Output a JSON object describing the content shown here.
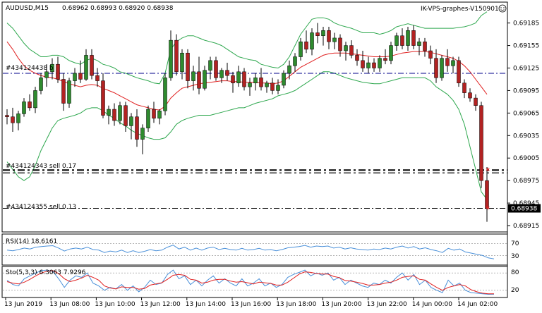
{
  "header": {
    "symbol": "AUDUSD,M15",
    "ohlc": "0.68962 0.68993 0.68920 0.68938",
    "watermark": "IK-VPS-graphes-V150901"
  },
  "colors": {
    "bull": "#2e8b2e",
    "bear": "#b22222",
    "bands": "#2fa84f",
    "ma": "#e02020",
    "level": "#00008b",
    "rsi": "#4a90d9",
    "sto_main": "#4a90d9",
    "sto_signal": "#e02020"
  },
  "chart_data": [
    {
      "type": "candlestick",
      "name": "AUDUSD,M15",
      "price_axis": {
        "ylim": [
          0.68915,
          0.69195
        ],
        "ticks": [
          "0.69185",
          "0.69155",
          "0.69125",
          "0.69095",
          "0.69065",
          "0.69035",
          "0.69005",
          "0.68975",
          "0.68945",
          "0.68915"
        ]
      },
      "current_price": "0.68938",
      "x_ticks": [
        "13 Jun 2019",
        "13 Jun 08:00",
        "13 Jun 10:00",
        "13 Jun 12:00",
        "13 Jun 14:00",
        "13 Jun 16:00",
        "13 Jun 18:00",
        "13 Jun 20:00",
        "13 Jun 22:00",
        "14 Jun 00:00",
        "14 Jun 02:00"
      ],
      "candles": [
        [
          0.69062,
          0.6907,
          0.6905,
          0.6906
        ],
        [
          0.6906,
          0.69072,
          0.6904,
          0.69052
        ],
        [
          0.69052,
          0.69068,
          0.69042,
          0.69064
        ],
        [
          0.69064,
          0.69085,
          0.6906,
          0.6908
        ],
        [
          0.6908,
          0.6909,
          0.69068,
          0.69072
        ],
        [
          0.69072,
          0.691,
          0.69065,
          0.69095
        ],
        [
          0.69095,
          0.69118,
          0.6909,
          0.69112
        ],
        [
          0.69112,
          0.6913,
          0.691,
          0.6912
        ],
        [
          0.6912,
          0.69138,
          0.6911,
          0.6913
        ],
        [
          0.6913,
          0.6914,
          0.69105,
          0.6911
        ],
        [
          0.6911,
          0.69118,
          0.69068,
          0.69078
        ],
        [
          0.69078,
          0.69112,
          0.69072,
          0.69108
        ],
        [
          0.69108,
          0.69125,
          0.691,
          0.69118
        ],
        [
          0.69118,
          0.69135,
          0.69105,
          0.6911
        ],
        [
          0.6911,
          0.6915,
          0.69108,
          0.69142
        ],
        [
          0.69142,
          0.6915,
          0.6911,
          0.69115
        ],
        [
          0.69115,
          0.69125,
          0.691,
          0.69108
        ],
        [
          0.69108,
          0.69118,
          0.69058,
          0.69062
        ],
        [
          0.69062,
          0.69075,
          0.6905,
          0.6907
        ],
        [
          0.6907,
          0.69078,
          0.69048,
          0.69055
        ],
        [
          0.69055,
          0.6908,
          0.6905,
          0.69075
        ],
        [
          0.69075,
          0.6908,
          0.6904,
          0.69048
        ],
        [
          0.69048,
          0.69065,
          0.6903,
          0.6906
        ],
        [
          0.6906,
          0.6907,
          0.6902,
          0.6903
        ],
        [
          0.6903,
          0.6905,
          0.6901,
          0.69045
        ],
        [
          0.69045,
          0.69075,
          0.6904,
          0.6907
        ],
        [
          0.6907,
          0.6908,
          0.69052,
          0.69058
        ],
        [
          0.69058,
          0.6907,
          0.6905,
          0.69068
        ],
        [
          0.69068,
          0.69118,
          0.69062,
          0.69112
        ],
        [
          0.69112,
          0.69175,
          0.69108,
          0.69162
        ],
        [
          0.69162,
          0.6917,
          0.69115,
          0.6912
        ],
        [
          0.6912,
          0.6915,
          0.6911,
          0.69145
        ],
        [
          0.69145,
          0.6915,
          0.69098,
          0.69108
        ],
        [
          0.69108,
          0.69128,
          0.69095,
          0.6912
        ],
        [
          0.6912,
          0.6914,
          0.6909,
          0.69098
        ],
        [
          0.69098,
          0.69128,
          0.69095,
          0.69122
        ],
        [
          0.69122,
          0.6914,
          0.6911,
          0.69135
        ],
        [
          0.69135,
          0.6914,
          0.69108,
          0.69112
        ],
        [
          0.69112,
          0.69125,
          0.69105,
          0.69122
        ],
        [
          0.69122,
          0.69132,
          0.69108,
          0.69115
        ],
        [
          0.69115,
          0.6912,
          0.69092,
          0.69105
        ],
        [
          0.69105,
          0.69128,
          0.691,
          0.6912
        ],
        [
          0.6912,
          0.69125,
          0.69095,
          0.691
        ],
        [
          0.691,
          0.69112,
          0.69088,
          0.69105
        ],
        [
          0.69105,
          0.69118,
          0.69095,
          0.69112
        ],
        [
          0.69112,
          0.69125,
          0.69095,
          0.691
        ],
        [
          0.691,
          0.69108,
          0.69092,
          0.69105
        ],
        [
          0.69105,
          0.69112,
          0.6909,
          0.69095
        ],
        [
          0.69095,
          0.6911,
          0.6909,
          0.69102
        ],
        [
          0.69102,
          0.69122,
          0.69098,
          0.69118
        ],
        [
          0.69118,
          0.69135,
          0.6911,
          0.69128
        ],
        [
          0.69128,
          0.69145,
          0.6912,
          0.6914
        ],
        [
          0.6914,
          0.69165,
          0.69135,
          0.6916
        ],
        [
          0.6916,
          0.69175,
          0.69145,
          0.6915
        ],
        [
          0.6915,
          0.69178,
          0.69142,
          0.69172
        ],
        [
          0.69172,
          0.69185,
          0.69158,
          0.69168
        ],
        [
          0.69168,
          0.6918,
          0.69155,
          0.69175
        ],
        [
          0.69175,
          0.6918,
          0.6915,
          0.6916
        ],
        [
          0.6916,
          0.69172,
          0.6915,
          0.69165
        ],
        [
          0.69165,
          0.6917,
          0.6914,
          0.69148
        ],
        [
          0.69148,
          0.6916,
          0.69135,
          0.69155
        ],
        [
          0.69155,
          0.69162,
          0.69138,
          0.69142
        ],
        [
          0.69142,
          0.6915,
          0.69128,
          0.69135
        ],
        [
          0.69135,
          0.69148,
          0.6912,
          0.69125
        ],
        [
          0.69125,
          0.6914,
          0.69118,
          0.69132
        ],
        [
          0.69132,
          0.69138,
          0.6912,
          0.69125
        ],
        [
          0.69125,
          0.69142,
          0.6912,
          0.69138
        ],
        [
          0.69138,
          0.6915,
          0.6913,
          0.69135
        ],
        [
          0.69135,
          0.6916,
          0.6913,
          0.69155
        ],
        [
          0.69155,
          0.69172,
          0.69148,
          0.69168
        ],
        [
          0.69168,
          0.69178,
          0.6915,
          0.69155
        ],
        [
          0.69155,
          0.6918,
          0.69148,
          0.69175
        ],
        [
          0.69175,
          0.69182,
          0.6915,
          0.69155
        ],
        [
          0.69155,
          0.69165,
          0.69142,
          0.6916
        ],
        [
          0.6916,
          0.69165,
          0.6914,
          0.69148
        ],
        [
          0.69148,
          0.69155,
          0.6913,
          0.69138
        ],
        [
          0.69138,
          0.6915,
          0.69105,
          0.69112
        ],
        [
          0.69112,
          0.69142,
          0.69108,
          0.69138
        ],
        [
          0.69138,
          0.6915,
          0.6912,
          0.69128
        ],
        [
          0.69128,
          0.6914,
          0.69118,
          0.69135
        ],
        [
          0.69135,
          0.6914,
          0.691,
          0.69105
        ],
        [
          0.69105,
          0.6911,
          0.69085,
          0.69092
        ],
        [
          0.69092,
          0.69098,
          0.6908,
          0.69085
        ],
        [
          0.69085,
          0.6909,
          0.69068,
          0.69075
        ],
        [
          0.69075,
          0.6908,
          0.68965,
          0.68975
        ],
        [
          0.68975,
          0.68993,
          0.6892,
          0.68938
        ]
      ]
    },
    {
      "type": "line",
      "name": "RSI(14)",
      "value": "18.6161",
      "levels": [
        "70",
        "30"
      ],
      "ylim": [
        0,
        100
      ],
      "values": [
        48,
        46,
        50,
        55,
        52,
        58,
        60,
        62,
        63,
        55,
        45,
        52,
        55,
        52,
        58,
        50,
        48,
        40,
        45,
        42,
        48,
        40,
        46,
        40,
        44,
        50,
        46,
        48,
        58,
        65,
        52,
        58,
        48,
        55,
        48,
        55,
        58,
        50,
        54,
        50,
        48,
        54,
        48,
        50,
        54,
        48,
        50,
        46,
        50,
        56,
        58,
        60,
        64,
        58,
        62,
        60,
        62,
        55,
        58,
        52,
        56,
        52,
        50,
        48,
        52,
        50,
        55,
        52,
        58,
        62,
        55,
        60,
        52,
        56,
        50,
        46,
        40,
        54,
        48,
        52,
        42,
        38,
        34,
        30,
        22,
        18.6
      ]
    },
    {
      "type": "line",
      "name": "Sto(5,3,3)",
      "value": "6.3063 7.9296",
      "levels": [
        "80",
        "20"
      ],
      "ylim": [
        0,
        100
      ],
      "series": [
        {
          "name": "main",
          "values": [
            55,
            40,
            35,
            60,
            70,
            80,
            88,
            90,
            85,
            60,
            30,
            55,
            70,
            65,
            80,
            45,
            35,
            20,
            30,
            25,
            40,
            20,
            35,
            15,
            30,
            55,
            40,
            45,
            75,
            90,
            60,
            70,
            40,
            55,
            35,
            55,
            70,
            45,
            60,
            45,
            35,
            60,
            35,
            45,
            60,
            35,
            45,
            30,
            40,
            65,
            75,
            82,
            90,
            70,
            80,
            72,
            80,
            55,
            65,
            40,
            55,
            45,
            35,
            30,
            45,
            40,
            55,
            45,
            65,
            80,
            55,
            75,
            40,
            55,
            30,
            20,
            12,
            55,
            35,
            45,
            20,
            12,
            10,
            8,
            6,
            6.3
          ]
        },
        {
          "name": "signal",
          "values": [
            50,
            45,
            42,
            48,
            58,
            70,
            80,
            86,
            88,
            78,
            60,
            50,
            55,
            62,
            72,
            65,
            55,
            35,
            28,
            25,
            32,
            30,
            30,
            24,
            26,
            38,
            42,
            46,
            58,
            72,
            75,
            72,
            58,
            55,
            45,
            48,
            55,
            58,
            58,
            52,
            48,
            50,
            46,
            42,
            48,
            46,
            44,
            38,
            38,
            48,
            62,
            76,
            84,
            82,
            78,
            76,
            76,
            68,
            64,
            54,
            52,
            48,
            44,
            38,
            38,
            40,
            45,
            48,
            55,
            65,
            68,
            70,
            58,
            55,
            42,
            30,
            20,
            30,
            35,
            40,
            35,
            22,
            15,
            10,
            8,
            7.9
          ]
        }
      ]
    }
  ],
  "bands": {
    "upper": [
      0.69185,
      0.69178,
      0.69168,
      0.69158,
      0.6915,
      0.69145,
      0.6914,
      0.6914,
      0.69142,
      0.69142,
      0.6914,
      0.69135,
      0.69132,
      0.6913,
      0.69135,
      0.69138,
      0.69135,
      0.6913,
      0.69128,
      0.69125,
      0.6912,
      0.69118,
      0.69115,
      0.69112,
      0.6911,
      0.69108,
      0.69105,
      0.69104,
      0.69118,
      0.6915,
      0.6916,
      0.69165,
      0.69168,
      0.69168,
      0.69165,
      0.69162,
      0.6916,
      0.69158,
      0.69155,
      0.6915,
      0.69145,
      0.6914,
      0.69138,
      0.69136,
      0.69135,
      0.6913,
      0.69128,
      0.69126,
      0.69125,
      0.6913,
      0.6914,
      0.69155,
      0.6917,
      0.6918,
      0.6919,
      0.69192,
      0.69192,
      0.6919,
      0.69185,
      0.69182,
      0.6918,
      0.69178,
      0.69175,
      0.69172,
      0.69172,
      0.69172,
      0.6917,
      0.69172,
      0.69175,
      0.6918,
      0.69182,
      0.69184,
      0.69182,
      0.6918,
      0.69178,
      0.69178,
      0.69178,
      0.69178,
      0.69178,
      0.69178,
      0.69179,
      0.6918,
      0.69182,
      0.69185,
      0.69195,
      0.692
    ],
    "lower": [
      0.69,
      0.6899,
      0.6898,
      0.68975,
      0.6898,
      0.68995,
      0.69015,
      0.6903,
      0.69045,
      0.69055,
      0.69058,
      0.6906,
      0.69062,
      0.69065,
      0.6907,
      0.69072,
      0.69072,
      0.69068,
      0.69062,
      0.69058,
      0.69052,
      0.69048,
      0.69042,
      0.69038,
      0.69035,
      0.69032,
      0.6903,
      0.6903,
      0.69032,
      0.6904,
      0.6905,
      0.69055,
      0.69058,
      0.6906,
      0.69062,
      0.69062,
      0.69062,
      0.69064,
      0.69066,
      0.69068,
      0.6907,
      0.69072,
      0.69072,
      0.69075,
      0.69078,
      0.6908,
      0.69082,
      0.69084,
      0.69088,
      0.6909,
      0.69092,
      0.69095,
      0.691,
      0.69105,
      0.6911,
      0.69115,
      0.6912,
      0.6912,
      0.69118,
      0.69115,
      0.69112,
      0.6911,
      0.69108,
      0.69106,
      0.69105,
      0.69104,
      0.69104,
      0.69106,
      0.69108,
      0.6911,
      0.69112,
      0.69112,
      0.69112,
      0.69112,
      0.69112,
      0.69108,
      0.691,
      0.69095,
      0.6909,
      0.69082,
      0.6907,
      0.6905,
      0.6902,
      0.6899,
      0.6896,
      0.6895
    ],
    "ma": [
      0.6916,
      0.6915,
      0.69138,
      0.69128,
      0.69122,
      0.69118,
      0.69115,
      0.69113,
      0.69112,
      0.6911,
      0.69107,
      0.69104,
      0.69102,
      0.691,
      0.69102,
      0.69103,
      0.69102,
      0.69098,
      0.69095,
      0.69092,
      0.69088,
      0.69084,
      0.6908,
      0.69076,
      0.69074,
      0.69072,
      0.6907,
      0.69069,
      0.69074,
      0.69085,
      0.69092,
      0.69098,
      0.691,
      0.69102,
      0.69104,
      0.69105,
      0.69106,
      0.69107,
      0.69108,
      0.69108,
      0.69107,
      0.69107,
      0.69106,
      0.69106,
      0.69106,
      0.69105,
      0.69105,
      0.69104,
      0.69105,
      0.69108,
      0.69114,
      0.6912,
      0.69126,
      0.6913,
      0.69134,
      0.69138,
      0.69142,
      0.69144,
      0.69145,
      0.69145,
      0.69145,
      0.69144,
      0.69143,
      0.69142,
      0.69141,
      0.6914,
      0.6914,
      0.6914,
      0.69141,
      0.69143,
      0.69145,
      0.69146,
      0.69147,
      0.69147,
      0.69147,
      0.69146,
      0.69144,
      0.69142,
      0.6914,
      0.69138,
      0.69134,
      0.69128,
      0.6912,
      0.6911,
      0.691,
      0.6909
    ]
  },
  "levels": [
    {
      "label": "#434124438 b",
      "price": 0.69118,
      "style": "blue"
    },
    {
      "label": "#434124343 sell 0.17",
      "price": 0.68989,
      "style": "black-heavy"
    },
    {
      "label": "#434124355 sell 0.13",
      "price": 0.68938,
      "style": "black-light"
    }
  ]
}
